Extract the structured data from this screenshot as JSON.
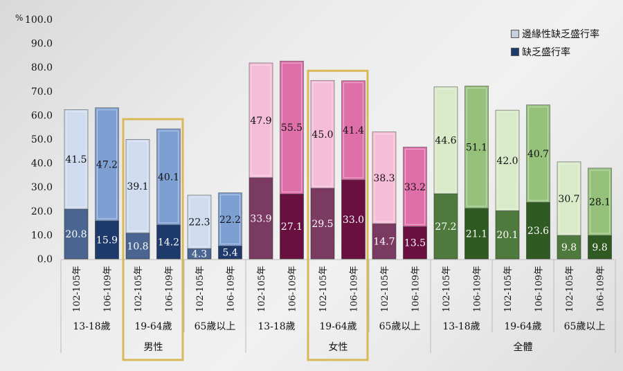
{
  "chart_data": {
    "type": "bar",
    "stacked": true,
    "yunit": "%",
    "ylim": [
      0,
      100
    ],
    "yticks": [
      "0.0",
      "10.0",
      "20.0",
      "30.0",
      "40.0",
      "50.0",
      "60.0",
      "70.0",
      "80.0",
      "90.0",
      "100.0"
    ],
    "grid": false,
    "legend_placement": "top-right",
    "categories": [
      "102-105年",
      "106-109年",
      "102-105年",
      "106-109年",
      "102-105年",
      "106-109年",
      "102-105年",
      "106-109年",
      "102-105年",
      "106-109年",
      "102-105年",
      "106-109年",
      "102-105年",
      "106-109年",
      "102-105年",
      "106-109年",
      "102-105年",
      "106-109年"
    ],
    "age_groups": [
      "13-18歲",
      "19-64歲",
      "65歲以上",
      "13-18歲",
      "19-64歲",
      "65歲以上",
      "13-18歲",
      "19-64歲",
      "65歲以上"
    ],
    "gender_groups": [
      "男性",
      "女性",
      "全體"
    ],
    "highlighted_age_groups": [
      1,
      4
    ],
    "series": [
      {
        "name": "缺乏盛行率",
        "values": [
          20.8,
          15.9,
          10.8,
          14.2,
          4.3,
          5.4,
          33.9,
          27.1,
          29.5,
          33.0,
          14.7,
          13.5,
          27.2,
          21.1,
          20.1,
          23.6,
          9.8,
          9.8
        ]
      },
      {
        "name": "邊緣性缺乏盛行率",
        "values": [
          41.5,
          47.2,
          39.1,
          40.1,
          22.3,
          22.2,
          47.9,
          55.5,
          45.0,
          41.4,
          38.3,
          33.2,
          44.6,
          51.1,
          42.0,
          40.7,
          30.7,
          28.1
        ]
      }
    ],
    "colors": {
      "male": {
        "odd_top": "#cfdbee",
        "odd_bottom": "#4a6591",
        "even_top": "#7e9fd2",
        "even_bottom": "#1e3a6c"
      },
      "female": {
        "odd_top": "#f5bdd7",
        "odd_bottom": "#7b3a61",
        "even_top": "#df6fa8",
        "even_bottom": "#6a1041"
      },
      "total": {
        "odd_top": "#d8eac8",
        "odd_bottom": "#4f7a3e",
        "even_top": "#95c17b",
        "even_bottom": "#2f5a22"
      },
      "highlight": "#d9b85a",
      "legend_marginal": "#c8cfdc",
      "legend_deficient": "#1e3a6c"
    }
  }
}
